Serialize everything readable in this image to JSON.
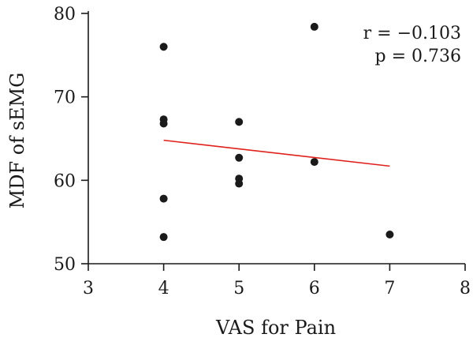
{
  "chart_data": {
    "type": "scatter",
    "xlabel": "VAS for Pain",
    "ylabel": "MDF of sEMG",
    "xlim": [
      3,
      8
    ],
    "ylim": [
      50,
      80
    ],
    "xticks": [
      3,
      4,
      5,
      6,
      7,
      8
    ],
    "yticks": [
      50,
      60,
      70,
      80
    ],
    "grid": false,
    "point_color": "#1a1a1a",
    "line_color": "#e0201b",
    "points": [
      {
        "x": 4,
        "y": 76.0
      },
      {
        "x": 4,
        "y": 67.3
      },
      {
        "x": 4,
        "y": 66.8
      },
      {
        "x": 4,
        "y": 57.8
      },
      {
        "x": 4,
        "y": 53.2
      },
      {
        "x": 5,
        "y": 67.0
      },
      {
        "x": 5,
        "y": 62.7
      },
      {
        "x": 5,
        "y": 60.2
      },
      {
        "x": 5,
        "y": 59.6
      },
      {
        "x": 6,
        "y": 78.4
      },
      {
        "x": 6,
        "y": 62.2
      },
      {
        "x": 7,
        "y": 53.5
      }
    ],
    "regression": {
      "x1": 4,
      "y1": 64.8,
      "x2": 7,
      "y2": 61.7
    },
    "annotations": [
      "r = −0.103",
      "p = 0.736"
    ]
  }
}
